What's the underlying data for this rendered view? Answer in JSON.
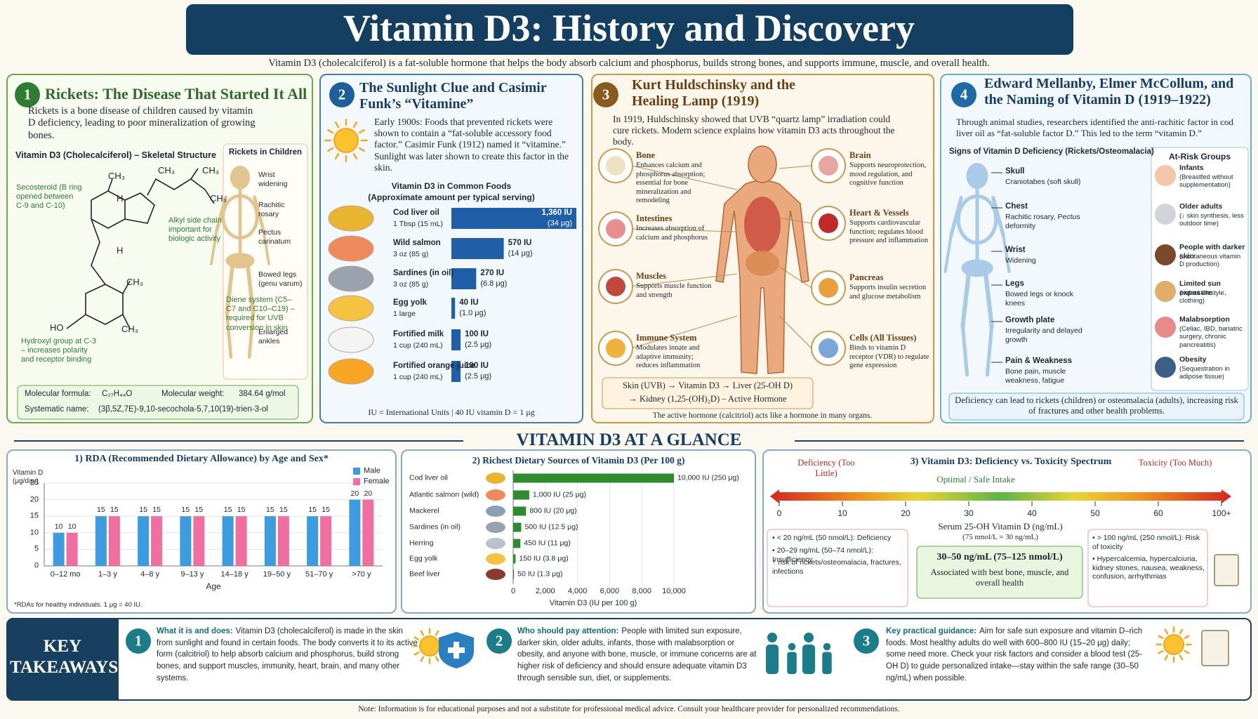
{
  "header": {
    "title": "Vitamin D3: History and Discovery",
    "subtitle": "Vitamin D3 (cholecalciferol) is a fat-soluble hormone that helps the body absorb calcium and phosphorus, builds strong bones, and supports immune, muscle, and overall health."
  },
  "panel1": {
    "number": "1",
    "title": "Rickets: The Disease That Started It All",
    "text": "Rickets is a bone disease of children caused by vitamin D deficiency, leading to poor mineralization of growing bones.",
    "structure_title": "Vitamin D3 (Cholecalciferol) – Skeletal Structure",
    "atoms": [
      "CH₃",
      "CH₃",
      "CH₃",
      "CH₃",
      "H",
      "H",
      "CH₃",
      "CH₃",
      "HO"
    ],
    "annotations": [
      "Secosteroid (B ring opened between C-9 and C-10)",
      "Alkyl side chain important for biologic activity",
      "Diene system (C5–C7 and C10–C19) – required for UVB conversion in skin",
      "Hydroxyl group at C-3 – increases polarity and receptor binding"
    ],
    "rickets_title": "Rickets in Children",
    "rickets_signs": [
      "Wrist widening",
      "Rachitic rosary",
      "Pectus carinatum",
      "Bowed legs (genu varum)",
      "Enlarged ankles"
    ],
    "formula_label": "Molecular formula:",
    "formula": "C₂₇H₄₄O",
    "weight_label": "Molecular weight:",
    "weight": "384.64 g/mol",
    "systematic_label": "Systematic name:",
    "systematic": "(3β,5Z,7E)-9,10-secochola-5,7,10(19)-trien-3-ol"
  },
  "panel2": {
    "number": "2",
    "title": "The Sunlight Clue and Casimir Funk’s “Vitamine”",
    "text": "Early 1900s: Foods that prevented rickets were shown to contain a “fat-soluble accessory food factor.” Casimir Funk (1912) named it “vitamine.” Sunlight was later shown to create this factor in the skin.",
    "footnote": "IU = International Units   |   40 IU vitamin D = 1 μg"
  },
  "panel3": {
    "number": "3",
    "title": "Kurt Huldschinsky and the Healing Lamp (1919)",
    "text": "In 1919, Huldschinsky showed that UVB “quartz lamp” irradiation could cure rickets. Modern science explains how vitamin D3 acts throughout the body.",
    "left_organs": [
      {
        "name": "Bone",
        "text": "Enhances calcium and phosphorus absorption; essential for bone mineralization and remodeling"
      },
      {
        "name": "Intestines",
        "text": "Increases absorption of calcium and phosphorus"
      },
      {
        "name": "Muscles",
        "text": "Supports muscle function and strength"
      },
      {
        "name": "Immune System",
        "text": "Modulates innate and adaptive immunity; reduces inflammation"
      }
    ],
    "right_organs": [
      {
        "name": "Brain",
        "text": "Supports neuroprotection, mood regulation, and cognitive function"
      },
      {
        "name": "Heart & Vessels",
        "text": "Supports cardiovascular function; regulates blood pressure and inflammation"
      },
      {
        "name": "Pancreas",
        "text": "Supports insulin secretion and glucose metabolism"
      },
      {
        "name": "Cells (All Tissues)",
        "text": "Binds to vitamin D receptor (VDR) to regulate gene expression"
      }
    ],
    "pathway": [
      "Skin (UVB) → Vitamin D3 → Liver (25-OH D)",
      "→ Kidney (1,25-(OH)₂D) – Active Hormone"
    ],
    "footer": "The active hormone (calcitriol) acts like a hormone in many organs."
  },
  "panel4": {
    "number": "4",
    "title": "Edward Mellanby, Elmer McCollum, and the Naming of Vitamin D (1919–1922)",
    "text": "Through animal studies, researchers identified the anti-rachitic factor in cod liver oil as “fat-soluble factor D.” This led to the term “vitamin D.”",
    "signs_title": "Signs of Vitamin D Deficiency (Rickets/Osteomalacia)",
    "signs": [
      {
        "name": "Skull",
        "text": "Craniotabes (soft skull)"
      },
      {
        "name": "Chest",
        "text": "Rachitic rosary, Pectus deformity"
      },
      {
        "name": "Wrist",
        "text": "Widening"
      },
      {
        "name": "Legs",
        "text": "Bowed legs or knock knees"
      },
      {
        "name": "Growth plate",
        "text": "Irregularity and delayed growth"
      },
      {
        "name": "Pain & Weakness",
        "text": "Bone pain, muscle weakness, fatigue"
      }
    ],
    "risk_title": "At-Risk Groups",
    "risks": [
      {
        "name": "Infants",
        "text": "(Breastfed without supplementation)"
      },
      {
        "name": "Older adults",
        "text": "(↓ skin synthesis, less outdoor time)"
      },
      {
        "name": "People with darker skin",
        "text": "(↓ cutaneous vitamin D production)"
      },
      {
        "name": "Limited sun exposure",
        "text": "(indoor lifestyle, clothing)"
      },
      {
        "name": "Malabsorption",
        "text": "(Celiac, IBD, bariatric surgery, chronic pancreatitis)"
      },
      {
        "name": "Obesity",
        "text": "(Sequestration in adipose tissue)"
      }
    ],
    "footer": "Deficiency can lead to rickets (children) or osteomalacia (adults), increasing risk of fractures and other health problems."
  },
  "section_title": "VITAMIN D3 AT A GLANCE",
  "chart_data": [
    {
      "type": "hbar",
      "title": "Vitamin D3 in Common Foods",
      "subtitle": "(Approximate amount per typical serving)",
      "color": "#1f5fa8",
      "categories": [
        "Cod liver oil",
        "Wild salmon",
        "Sardines (in oil)",
        "Egg yolk",
        "Fortified milk",
        "Fortified orange juice"
      ],
      "servings": [
        "1 Tbsp (15 mL)",
        "3 oz (85 g)",
        "3 oz (85 g)",
        "1 large",
        "1 cup (240 mL)",
        "1 cup (240 mL)"
      ],
      "values": [
        1360,
        570,
        270,
        40,
        100,
        100
      ],
      "value_labels": [
        "1,360 IU",
        "570 IU",
        "270 IU",
        "40 IU",
        "100 IU",
        "100 IU"
      ],
      "secondary_labels": [
        "(34 μg)",
        "(14 μg)",
        "(6.8 μg)",
        "(1.0 μg)",
        "(2.5 μg)",
        "(2.5 μg)"
      ]
    },
    {
      "type": "bar",
      "title": "1) RDA (Recommended Dietary Allowance) by Age and Sex*",
      "y_label": "Vitamin D (μg/day)",
      "x_label": "Age",
      "footnote": "*RDAs for healthy individuals.  1 μg = 40 IU.",
      "categories": [
        "0–12 mo",
        "1–3 y",
        "4–8 y",
        "9–13 y",
        "14–18 y",
        "19–50 y",
        "51–70 y",
        ">70 y"
      ],
      "series": [
        {
          "name": "Male",
          "color": "#3d9be0",
          "values": [
            10,
            15,
            15,
            15,
            15,
            15,
            15,
            20
          ]
        },
        {
          "name": "Female",
          "color": "#f06fa0",
          "values": [
            10,
            15,
            15,
            15,
            15,
            15,
            15,
            20
          ]
        }
      ],
      "ylim": [
        0,
        25
      ],
      "yticks": [
        0,
        5,
        10,
        15,
        20,
        25
      ],
      "grid": true,
      "legend": "top-right"
    },
    {
      "type": "hbar",
      "title": "2) Richest Dietary Sources of Vitamin D3 (Per 100 g)",
      "x_label": "Vitamin D3 (IU per 100 g)",
      "color": "#2e8b2e",
      "categories": [
        "Cod liver oil",
        "Atlantic salmon (wild)",
        "Mackerel",
        "Sardines (in oil)",
        "Herring",
        "Egg yolk",
        "Beef liver"
      ],
      "values": [
        10000,
        1000,
        800,
        500,
        450,
        150,
        50
      ],
      "value_labels": [
        "10,000 IU (250 μg)",
        "1,000 IU (25 μg)",
        "800 IU (20 μg)",
        "500 IU (12.5 μg)",
        "450 IU (11 μg)",
        "150 IU (3.8 μg)",
        "50 IU (1.3 μg)"
      ],
      "xlim": [
        0,
        10000
      ],
      "xticks": [
        0,
        {
          "value": 2000,
          "label": "2,000"
        },
        {
          "value": 4000,
          "label": "4,000"
        },
        {
          "value": 6000,
          "label": "6,000"
        },
        {
          "value": 8000,
          "label": "8,000"
        },
        {
          "value": 10000,
          "label": "10,000"
        }
      ],
      "grid": true
    }
  ],
  "spectrum": {
    "title": "3) Vitamin D3: Deficiency vs. Toxicity Spectrum",
    "left_label": "Deficiency (Too Little)",
    "right_label": "Toxicity (Too Much)",
    "middle_label": "Optimal / Safe Intake",
    "ticks": [
      0,
      10,
      20,
      30,
      40,
      50,
      60,
      {
        "value": 100,
        "label": "100+"
      }
    ],
    "axis_label": "Serum 25-OH Vitamin D (ng/mL)",
    "axis_note": "(75 nmol/L = 30 ng/mL)",
    "left_notes": [
      "• < 20 ng/mL (50 nmol/L): Deficiency",
      "• 20–29 ng/mL (50–74 nmol/L): Insufficiency",
      "↑ risk of rickets/osteomalacia, fractures, infections"
    ],
    "optimal_range": "30–50 ng/mL (75–125 nmol/L)",
    "optimal_text": "Associated with best bone, muscle, and overall health",
    "right_notes": [
      "• > 100 ng/mL (250 nmol/L): Risk of toxicity",
      "• Hypercalcemia, hypercalciuria, kidney stones, nausea, weakness, confusion, arrhythmias"
    ]
  },
  "takeaways": {
    "title": "KEY TAKEAWAYS",
    "items": [
      {
        "number": "1",
        "lead": "What it is and does:",
        "text": "Vitamin D3 (cholecalciferol) is made in the skin from sunlight and found in certain foods. The body converts it to its active form (calcitriol) to help absorb calcium and phosphorus, build strong bones, and support muscles, immunity, heart, brain, and many other systems."
      },
      {
        "number": "2",
        "lead": "Who should pay attention:",
        "text": "People with limited sun exposure, darker skin, older adults, infants, those with malabsorption or obesity, and anyone with bone, muscle, or immune concerns are at higher risk of deficiency and should ensure adequate vitamin D3 through sensible sun, diet, or supplements."
      },
      {
        "number": "3",
        "lead": "Key practical guidance:",
        "text": "Aim for safe sun exposure and vitamin D–rich foods. Most healthy adults do well with 600–800 IU (15–20 μg) daily; some need more. Check your risk factors and consider a blood test (25-OH D) to guide personalized intake—stay within the safe range (30–50 ng/mL) when possible."
      }
    ]
  },
  "note": "Note: Information is for educational purposes and not a substitute for professional medical advice.  Consult your healthcare provider for personalized recommendations."
}
